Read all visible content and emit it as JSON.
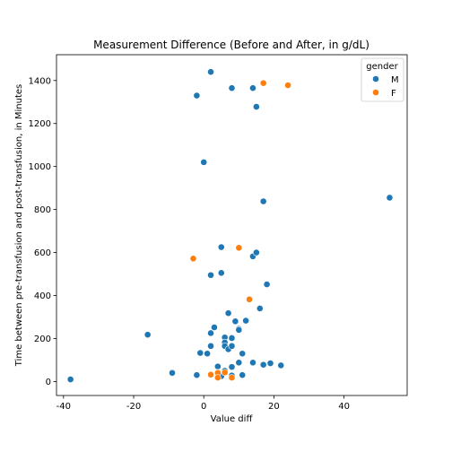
{
  "chart_data": {
    "type": "scatter",
    "title": "Measurement Difference (Before and After, in g/dL)",
    "xlabel": "Value diff",
    "ylabel": "Time between pre-transfusion  and post-transfusion, in Minutes",
    "xlim": [
      -42,
      58
    ],
    "ylim": [
      -65,
      1520
    ],
    "xticks": [
      -40,
      -20,
      0,
      20,
      40
    ],
    "yticks": [
      0,
      200,
      400,
      600,
      800,
      1000,
      1200,
      1400
    ],
    "grid": false,
    "legend": {
      "title": "gender",
      "placement": "top-right"
    },
    "series": [
      {
        "name": "M",
        "color": "#1f77b4",
        "points": [
          [
            -38,
            10
          ],
          [
            -16,
            218
          ],
          [
            -9,
            40
          ],
          [
            -2,
            1330
          ],
          [
            -2,
            30
          ],
          [
            -1,
            133
          ],
          [
            0,
            1020
          ],
          [
            1,
            130
          ],
          [
            2,
            1440
          ],
          [
            2,
            495
          ],
          [
            2,
            225
          ],
          [
            2,
            165
          ],
          [
            3,
            252
          ],
          [
            4,
            70
          ],
          [
            4,
            42
          ],
          [
            5,
            625
          ],
          [
            5,
            505
          ],
          [
            5,
            25
          ],
          [
            6,
            205
          ],
          [
            6,
            182
          ],
          [
            6,
            165
          ],
          [
            6,
            50
          ],
          [
            7,
            318
          ],
          [
            7,
            150
          ],
          [
            8,
            1365
          ],
          [
            8,
            202
          ],
          [
            8,
            165
          ],
          [
            8,
            68
          ],
          [
            8,
            28
          ],
          [
            9,
            280
          ],
          [
            10,
            245
          ],
          [
            10,
            240
          ],
          [
            10,
            88
          ],
          [
            11,
            130
          ],
          [
            11,
            30
          ],
          [
            12,
            283
          ],
          [
            14,
            1365
          ],
          [
            14,
            582
          ],
          [
            14,
            88
          ],
          [
            15,
            1278
          ],
          [
            15,
            600
          ],
          [
            16,
            340
          ],
          [
            17,
            838
          ],
          [
            17,
            78
          ],
          [
            18,
            452
          ],
          [
            19,
            85
          ],
          [
            22,
            75
          ],
          [
            53,
            855
          ]
        ]
      },
      {
        "name": "F",
        "color": "#ff7f0e",
        "points": [
          [
            -3,
            572
          ],
          [
            2,
            32
          ],
          [
            4,
            40
          ],
          [
            4,
            18
          ],
          [
            6,
            42
          ],
          [
            8,
            18
          ],
          [
            10,
            622
          ],
          [
            13,
            382
          ],
          [
            17,
            1388
          ],
          [
            24,
            1378
          ]
        ]
      }
    ]
  }
}
